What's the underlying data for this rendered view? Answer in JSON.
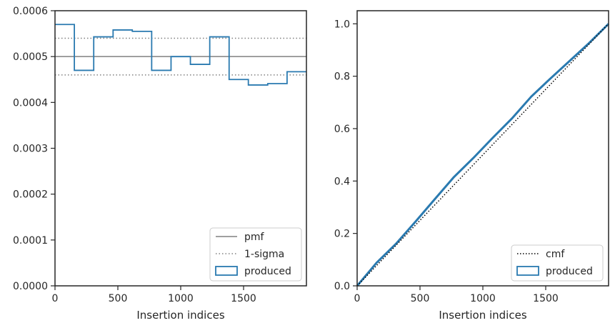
{
  "colors": {
    "produced": "#2a7ab0",
    "pmf": "#808080",
    "sigma": "#808080",
    "cmf": "#000000",
    "axes": "#262626"
  },
  "chart_data": [
    {
      "type": "histogram-step",
      "xlabel": "Insertion indices",
      "ylabel": "",
      "xlim": [
        0,
        2000
      ],
      "ylim": [
        0,
        0.0006
      ],
      "xticks": [
        0,
        500,
        1000,
        1500
      ],
      "xtick_labels": [
        "0",
        "500",
        "1000",
        "1500"
      ],
      "yticks": [
        0,
        0.0001,
        0.0002,
        0.0003,
        0.0004,
        0.0005,
        0.0006
      ],
      "ytick_labels": [
        "0.0000",
        "0.0001",
        "0.0002",
        "0.0003",
        "0.0004",
        "0.0005",
        "0.0006"
      ],
      "bin_edges": [
        0,
        154,
        308,
        462,
        615,
        769,
        923,
        1077,
        1231,
        1385,
        1538,
        1692,
        1846,
        2000
      ],
      "series": [
        {
          "name": "produced",
          "style": "step",
          "values": [
            0.00057,
            0.00047,
            0.000543,
            0.000558,
            0.000555,
            0.00047,
            0.0005,
            0.000483,
            0.000543,
            0.00045,
            0.000438,
            0.000441,
            0.000467
          ]
        },
        {
          "name": "pmf",
          "style": "solid",
          "y": 0.0005
        },
        {
          "name": "1-sigma",
          "style": "dotted",
          "y": [
            0.00054,
            0.00046
          ]
        }
      ],
      "legend": {
        "position": "bottom-right",
        "entries": [
          "pmf",
          "1-sigma",
          "produced"
        ]
      }
    },
    {
      "type": "line",
      "xlabel": "Insertion indices",
      "ylabel": "",
      "xlim": [
        0,
        2000
      ],
      "ylim": [
        0,
        1.05
      ],
      "xticks": [
        0,
        500,
        1000,
        1500
      ],
      "xtick_labels": [
        "0",
        "500",
        "1000",
        "1500"
      ],
      "yticks": [
        0,
        0.2,
        0.4,
        0.6,
        0.8,
        1.0
      ],
      "ytick_labels": [
        "0.0",
        "0.2",
        "0.4",
        "0.6",
        "0.8",
        "1.0"
      ],
      "series": [
        {
          "name": "cmf",
          "style": "dotted",
          "x": [
            0,
            2000
          ],
          "y": [
            0,
            1.0
          ]
        },
        {
          "name": "produced",
          "style": "thick",
          "x": [
            0,
            154,
            308,
            462,
            615,
            769,
            923,
            1077,
            1231,
            1385,
            1538,
            1692,
            1846,
            2000
          ],
          "y": [
            0,
            0.0878,
            0.16,
            0.2436,
            0.3294,
            0.4148,
            0.4872,
            0.5642,
            0.6386,
            0.7222,
            0.7915,
            0.859,
            0.927,
            1.0
          ]
        }
      ],
      "legend": {
        "position": "bottom-right",
        "entries": [
          "cmf",
          "produced"
        ]
      }
    }
  ]
}
